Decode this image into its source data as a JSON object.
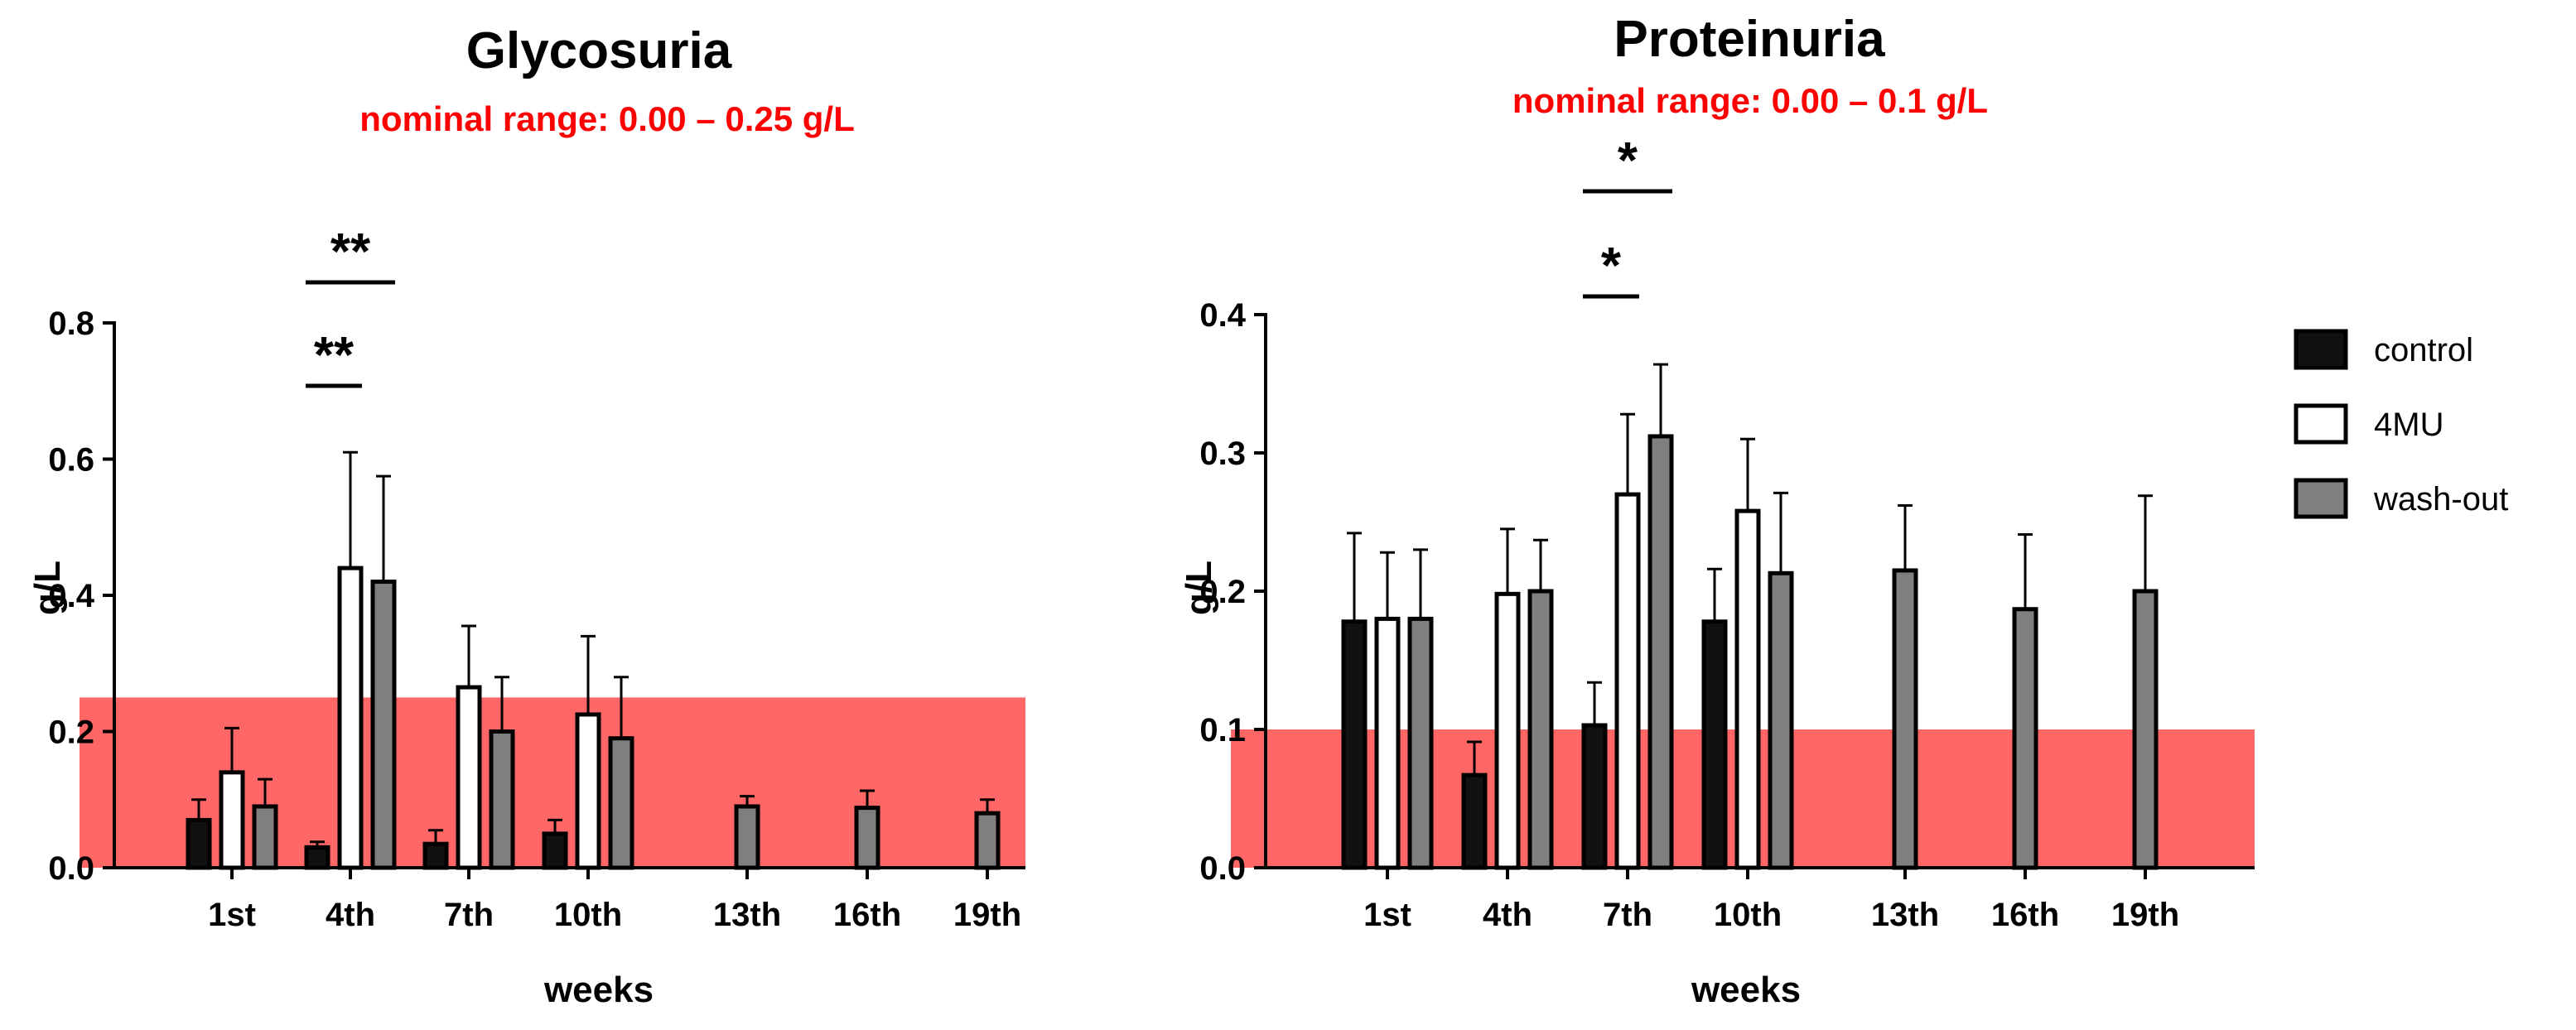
{
  "colors": {
    "control": "#111111",
    "fourMU": "#ffffff",
    "washout": "#7f7f7f",
    "nominal_band": "#ff6666",
    "nominal_text": "#ff0000"
  },
  "legend": [
    {
      "key": "control",
      "label": "control"
    },
    {
      "key": "fourMU",
      "label": "4MU"
    },
    {
      "key": "washout",
      "label": "wash-out"
    }
  ],
  "chart_data": [
    {
      "type": "bar",
      "title": "Glycosuria",
      "subtitle": "nominal range: 0.00 – 0.25 g/L",
      "nominal_range": [
        0.0,
        0.25
      ],
      "xlabel": "weeks",
      "ylabel": "g/L",
      "ylim": [
        0,
        0.8
      ],
      "yticks": [
        "0.0",
        "0.2",
        "0.4",
        "0.6",
        "0.8"
      ],
      "ytick_values": [
        0,
        0.2,
        0.4,
        0.6,
        0.8
      ],
      "categories": [
        "1st",
        "4th",
        "7th",
        "10th",
        "13th",
        "16th",
        "19th"
      ],
      "series": [
        {
          "name": "control",
          "values": [
            0.07,
            0.03,
            0.035,
            0.05,
            null,
            null,
            null
          ],
          "errors": [
            0.03,
            0.008,
            0.02,
            0.02,
            null,
            null,
            null
          ]
        },
        {
          "name": "4MU",
          "values": [
            0.14,
            0.44,
            0.265,
            0.225,
            null,
            null,
            null
          ],
          "errors": [
            0.065,
            0.17,
            0.09,
            0.115,
            null,
            null,
            null
          ]
        },
        {
          "name": "wash-out",
          "values": [
            0.09,
            0.42,
            0.2,
            0.19,
            0.09,
            0.088,
            0.08
          ],
          "errors": [
            0.04,
            0.155,
            0.08,
            0.09,
            0.015,
            0.025,
            0.02
          ]
        }
      ],
      "significance": [
        {
          "label": "**",
          "between": [
            "control",
            "4MU"
          ],
          "category": "4th"
        },
        {
          "label": "**",
          "between": [
            "control",
            "wash-out"
          ],
          "category": "4th"
        }
      ]
    },
    {
      "type": "bar",
      "title": "Proteinuria",
      "subtitle": "nominal range: 0.00 – 0.1 g/L",
      "nominal_range": [
        0.0,
        0.1
      ],
      "xlabel": "weeks",
      "ylabel": "g/L",
      "ylim": [
        0,
        0.4
      ],
      "yticks": [
        "0.0",
        "0.1",
        "0.2",
        "0.3",
        "0.4"
      ],
      "ytick_values": [
        0,
        0.1,
        0.2,
        0.3,
        0.4
      ],
      "categories": [
        "1st",
        "4th",
        "7th",
        "10th",
        "13th",
        "16th",
        "19th"
      ],
      "series": [
        {
          "name": "control",
          "values": [
            0.178,
            0.067,
            0.103,
            0.178,
            null,
            null,
            null
          ],
          "errors": [
            0.064,
            0.024,
            0.031,
            0.038,
            null,
            null,
            null
          ]
        },
        {
          "name": "4MU",
          "values": [
            0.18,
            0.198,
            0.27,
            0.258,
            null,
            null,
            null
          ],
          "errors": [
            0.048,
            0.047,
            0.058,
            0.052,
            null,
            null,
            null
          ]
        },
        {
          "name": "wash-out",
          "values": [
            0.18,
            0.2,
            0.312,
            0.213,
            0.215,
            0.187,
            0.2
          ],
          "errors": [
            0.05,
            0.037,
            0.052,
            0.058,
            0.047,
            0.054,
            0.069
          ]
        }
      ],
      "significance": [
        {
          "label": "*",
          "between": [
            "control",
            "4MU"
          ],
          "category": "7th"
        },
        {
          "label": "*",
          "between": [
            "control",
            "wash-out"
          ],
          "category": "7th"
        }
      ]
    }
  ]
}
